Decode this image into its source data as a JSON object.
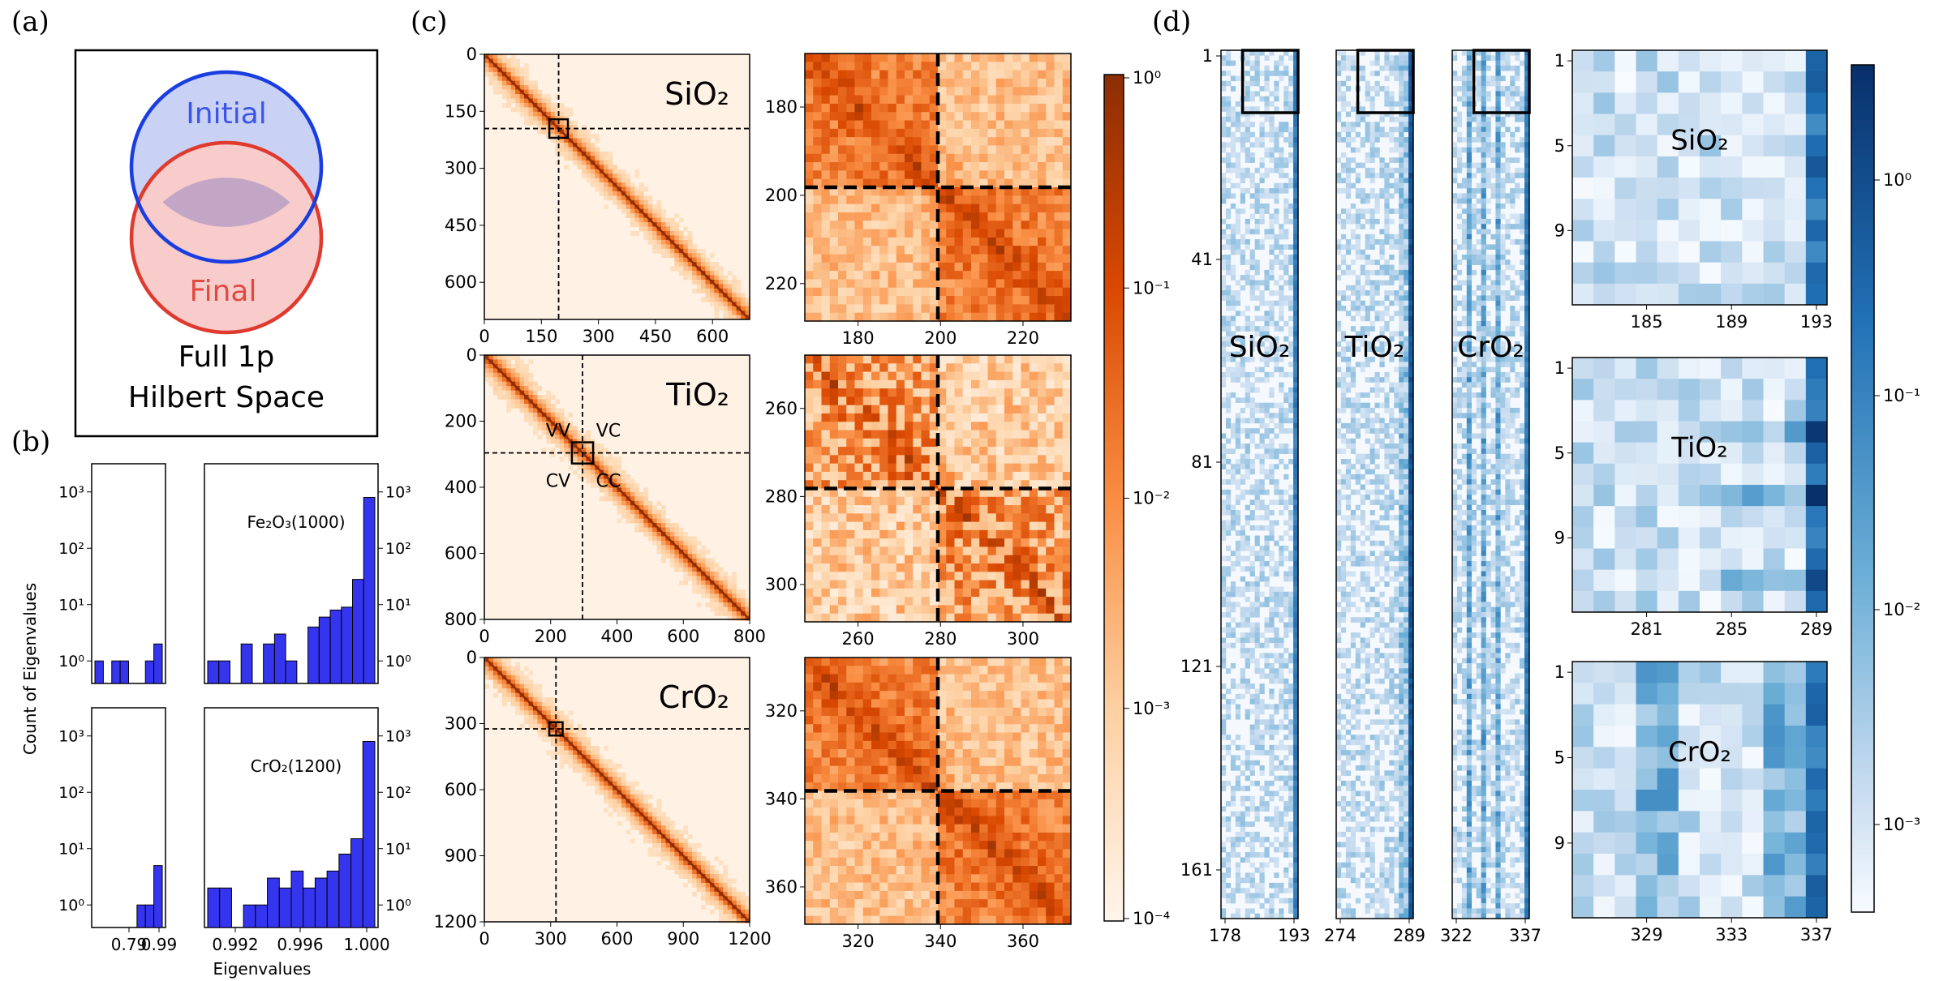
{
  "panel_labels": {
    "a": "(a)",
    "b": "(b)",
    "c": "(c)",
    "d": "(d)"
  },
  "venn": {
    "initial": "Initial",
    "final": "Final",
    "caption_line1": "Full 1p",
    "caption_line2": "Hilbert Space",
    "colors": {
      "initial": "#1a3de0",
      "final": "#e03a2e",
      "initial_fill": "#c8cff4",
      "final_fill": "#f8cccc",
      "overlap_fill": "#c0a7c7"
    }
  },
  "histograms": {
    "ylabel": "Count of Eigenvalues",
    "xlabel": "Eigenvalues",
    "bar_color": "#3535f0",
    "yticks": [
      "10⁰",
      "10¹",
      "10²",
      "10³"
    ],
    "left_xticks": [
      "0.79",
      "0.99"
    ],
    "right_xticks": [
      "0.992",
      "0.996",
      "1.000"
    ],
    "rows": [
      {
        "label": "Fe₂O₃(1000)",
        "left_counts": [
          1,
          0,
          1,
          1,
          0,
          0,
          1,
          2
        ],
        "right_counts": [
          1,
          1,
          0,
          2,
          0,
          2,
          3,
          1,
          0,
          4,
          6,
          8,
          9,
          28,
          800
        ]
      },
      {
        "label": "CrO₂(1200)",
        "left_counts": [
          0,
          0,
          0,
          0,
          0,
          1,
          1,
          5
        ],
        "right_counts": [
          2,
          2,
          0,
          1,
          1,
          3,
          2,
          4,
          2,
          3,
          4,
          8,
          15,
          800
        ]
      }
    ]
  },
  "panel_c": {
    "colorbar": {
      "ticks": [
        "10⁰",
        "10⁻¹",
        "10⁻²",
        "10⁻³",
        "10⁻⁴"
      ],
      "color_high": "#9e3a0c",
      "color_low": "#fff4ea"
    },
    "rows": [
      {
        "label": "SiO₂",
        "main_xticks": [
          "0",
          "150",
          "300",
          "450",
          "600"
        ],
        "main_yticks": [
          "0",
          "150",
          "300",
          "450",
          "600"
        ],
        "zoom_xticks": [
          "180",
          "200",
          "220"
        ],
        "zoom_yticks": [
          "180",
          "200",
          "220"
        ]
      },
      {
        "label": "TiO₂",
        "main_xticks": [
          "0",
          "200",
          "400",
          "600",
          "800"
        ],
        "main_yticks": [
          "0",
          "200",
          "400",
          "600",
          "800"
        ],
        "zoom_xticks": [
          "260",
          "280",
          "300"
        ],
        "zoom_yticks": [
          "260",
          "280",
          "300"
        ],
        "quadrants": {
          "vv": "VV",
          "vc": "VC",
          "cv": "CV",
          "cc": "CC"
        }
      },
      {
        "label": "CrO₂",
        "main_xticks": [
          "0",
          "300",
          "600",
          "900",
          "1200"
        ],
        "main_yticks": [
          "0",
          "300",
          "600",
          "900",
          "1200"
        ],
        "zoom_xticks": [
          "320",
          "340",
          "360"
        ],
        "zoom_yticks": [
          "320",
          "340",
          "360"
        ]
      }
    ]
  },
  "panel_d": {
    "yticks": [
      "1",
      "41",
      "81",
      "121",
      "161"
    ],
    "colorbar": {
      "ticks": [
        "10⁰",
        "10⁻¹",
        "10⁻²",
        "10⁻³"
      ],
      "color_high": "#08306b",
      "color_low": "#f7fbff"
    },
    "strips": [
      {
        "label": "SiO₂",
        "xticks": [
          "178",
          "193"
        ]
      },
      {
        "label": "TiO₂",
        "xticks": [
          "274",
          "289"
        ]
      },
      {
        "label": "CrO₂",
        "xticks": [
          "322",
          "337"
        ]
      }
    ],
    "insets": [
      {
        "label": "SiO₂",
        "yticks": [
          "1",
          "5",
          "9"
        ],
        "xticks": [
          "185",
          "189",
          "193"
        ]
      },
      {
        "label": "TiO₂",
        "yticks": [
          "1",
          "5",
          "9"
        ],
        "xticks": [
          "281",
          "285",
          "289"
        ]
      },
      {
        "label": "CrO₂",
        "yticks": [
          "1",
          "5",
          "9"
        ],
        "xticks": [
          "329",
          "333",
          "337"
        ]
      }
    ]
  }
}
